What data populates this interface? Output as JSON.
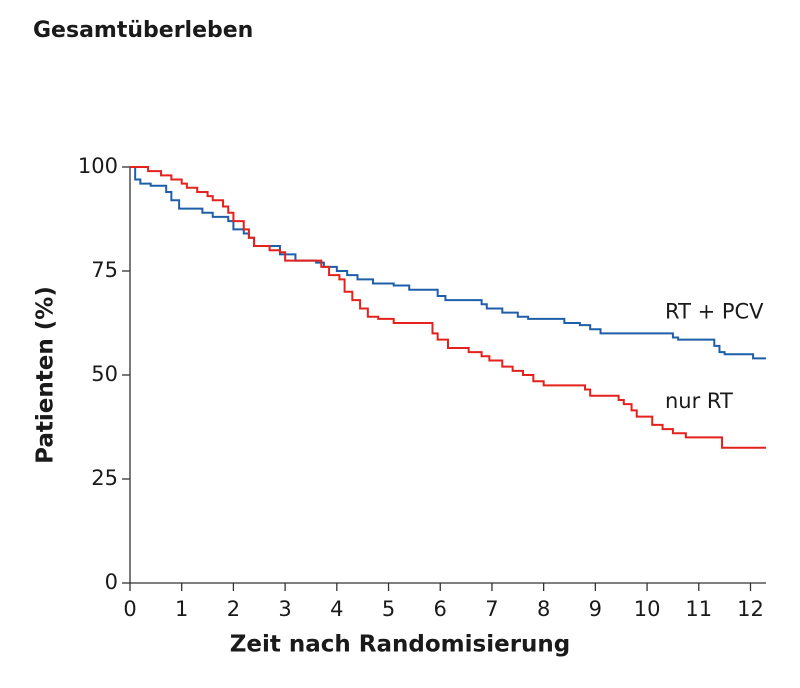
{
  "chart_data": {
    "type": "step",
    "title": "Gesamtüberleben",
    "x_label": "Zeit nach Randomisierung",
    "y_label": "Patienten (%)",
    "xlim": [
      0,
      12.3
    ],
    "xticks": [
      0,
      1,
      2,
      3,
      4,
      5,
      6,
      7,
      8,
      9,
      10,
      11,
      12
    ],
    "ylim": [
      0,
      100
    ],
    "yticks": [
      0,
      25,
      50,
      75,
      100
    ],
    "grid": false,
    "series": [
      {
        "name": "RT + PCV",
        "color": "#1f5ea8",
        "x": [
          0,
          0.1,
          0.2,
          0.4,
          0.7,
          0.8,
          0.95,
          1.4,
          1.6,
          1.9,
          2.0,
          2.2,
          2.3,
          2.4,
          2.9,
          3.2,
          3.6,
          3.75,
          4.0,
          4.2,
          4.4,
          4.7,
          5.1,
          5.4,
          5.95,
          6.1,
          6.8,
          6.9,
          7.2,
          7.5,
          7.7,
          8.4,
          8.7,
          8.9,
          9.1,
          10.5,
          10.6,
          11.3,
          11.4,
          11.5,
          12.05,
          12.3
        ],
        "values": [
          100,
          97,
          96,
          95.5,
          94,
          92,
          90,
          89,
          88,
          87,
          85,
          84,
          83,
          81,
          79,
          77.5,
          77,
          76,
          75,
          74,
          73,
          72,
          71.5,
          70.5,
          69,
          68,
          67,
          66,
          65,
          64,
          63.5,
          62.5,
          62,
          61,
          60,
          59,
          58.5,
          57,
          55.5,
          55,
          54,
          54
        ]
      },
      {
        "name": "nur RT",
        "color": "#e4211c",
        "x": [
          0,
          0.35,
          0.6,
          0.8,
          1.0,
          1.1,
          1.3,
          1.5,
          1.6,
          1.8,
          1.9,
          2.0,
          2.2,
          2.3,
          2.4,
          2.7,
          2.9,
          3.0,
          3.7,
          3.85,
          4.05,
          4.15,
          4.3,
          4.45,
          4.6,
          4.8,
          5.1,
          5.85,
          5.95,
          6.15,
          6.55,
          6.8,
          6.95,
          7.2,
          7.4,
          7.6,
          7.8,
          8.0,
          8.8,
          8.9,
          9.45,
          9.55,
          9.7,
          9.8,
          10.1,
          10.3,
          10.5,
          10.75,
          11.45,
          12.3
        ],
        "values": [
          100,
          99,
          98,
          97,
          96,
          95,
          94,
          93,
          92,
          90.5,
          89,
          87,
          85,
          83,
          81,
          80,
          79.5,
          77.5,
          76,
          74,
          73,
          70,
          68,
          66,
          64,
          63.5,
          62.5,
          60,
          58.5,
          56.5,
          55.5,
          54.5,
          53.5,
          52,
          51,
          50,
          48.5,
          47.5,
          46.5,
          45,
          44,
          43,
          41.5,
          40,
          38,
          37,
          36,
          35,
          32.5,
          32.5
        ]
      }
    ]
  }
}
